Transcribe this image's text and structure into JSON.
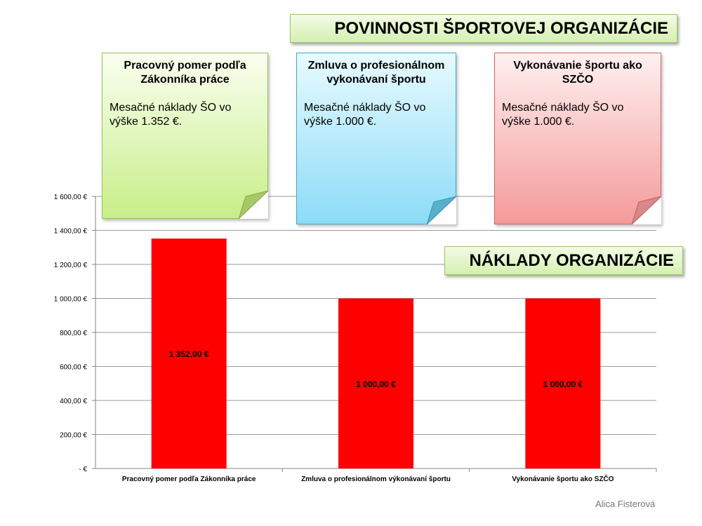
{
  "chart_data": {
    "type": "bar",
    "categories": [
      "Pracovný pomer podľa Zákonníka práce",
      "Zmluva o profesionálnom výkonávaní športu",
      "Vykonávanie športu ako SZČO"
    ],
    "values": [
      1352,
      1000,
      1000
    ],
    "value_labels": [
      "1 352,00 €",
      "1 000,00 €",
      "1 000,00 €"
    ],
    "yticks": [
      0,
      200,
      400,
      600,
      800,
      1000,
      1200,
      1400,
      1600
    ],
    "ytick_labels": [
      "-   €",
      "200,00 €",
      "400,00 €",
      "600,00 €",
      "800,00 €",
      "1 000,00 €",
      "1 200,00 €",
      "1 400,00 €",
      "1 600,00 €"
    ],
    "ylim": [
      0,
      1600
    ],
    "grid": true,
    "bar_color": "#ff0000"
  },
  "banners": {
    "title": "POVINNOSTI ŠPORTOVEJ ORGANIZÁCIE",
    "costs": "NÁKLADY ORGANIZÁCIE"
  },
  "notes": [
    {
      "title": "Pracovný pomer podľa Zákonníka práce",
      "body": "Mesačné náklady ŠO vo výške 1.352 €."
    },
    {
      "title": "Zmluva o profesionálnom vykonávaní športu",
      "body": "Mesačné náklady ŠO vo výške 1.000 €."
    },
    {
      "title": "Vykonávanie športu ako SZČO",
      "body": "Mesačné náklady ŠO vo výške 1.000 €."
    }
  ],
  "signature": "Alica Fisterová"
}
